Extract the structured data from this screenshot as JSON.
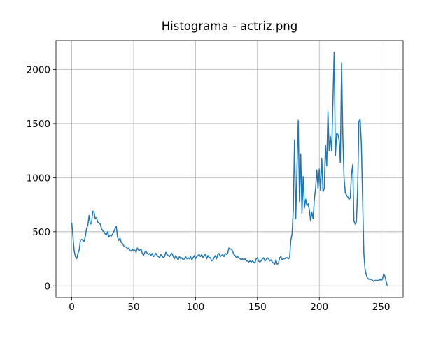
{
  "chart_data": {
    "type": "line",
    "title": "Histograma - actriz.png",
    "x": [
      0,
      1,
      2,
      3,
      4,
      5,
      6,
      7,
      8,
      9,
      10,
      11,
      12,
      13,
      14,
      15,
      16,
      17,
      18,
      19,
      20,
      21,
      22,
      23,
      24,
      25,
      26,
      27,
      28,
      29,
      30,
      31,
      32,
      33,
      34,
      35,
      36,
      37,
      38,
      39,
      40,
      41,
      42,
      43,
      44,
      45,
      46,
      47,
      48,
      49,
      50,
      51,
      52,
      53,
      54,
      55,
      56,
      57,
      58,
      59,
      60,
      61,
      62,
      63,
      64,
      65,
      66,
      67,
      68,
      69,
      70,
      71,
      72,
      73,
      74,
      75,
      76,
      77,
      78,
      79,
      80,
      81,
      82,
      83,
      84,
      85,
      86,
      87,
      88,
      89,
      90,
      91,
      92,
      93,
      94,
      95,
      96,
      97,
      98,
      99,
      100,
      101,
      102,
      103,
      104,
      105,
      106,
      107,
      108,
      109,
      110,
      111,
      112,
      113,
      114,
      115,
      116,
      117,
      118,
      119,
      120,
      121,
      122,
      123,
      124,
      125,
      126,
      127,
      128,
      129,
      130,
      131,
      132,
      133,
      134,
      135,
      136,
      137,
      138,
      139,
      140,
      141,
      142,
      143,
      144,
      145,
      146,
      147,
      148,
      149,
      150,
      151,
      152,
      153,
      154,
      155,
      156,
      157,
      158,
      159,
      160,
      161,
      162,
      163,
      164,
      165,
      166,
      167,
      168,
      169,
      170,
      171,
      172,
      173,
      174,
      175,
      176,
      177,
      178,
      179,
      180,
      181,
      182,
      183,
      184,
      185,
      186,
      187,
      188,
      189,
      190,
      191,
      192,
      193,
      194,
      195,
      196,
      197,
      198,
      199,
      200,
      201,
      202,
      203,
      204,
      205,
      206,
      207,
      208,
      209,
      210,
      211,
      212,
      213,
      214,
      215,
      216,
      217,
      218,
      219,
      220,
      221,
      222,
      223,
      224,
      225,
      226,
      227,
      228,
      229,
      230,
      231,
      232,
      233,
      234,
      235,
      236,
      237,
      238,
      239,
      240,
      241,
      242,
      243,
      244,
      245,
      246,
      247,
      248,
      249,
      250,
      251,
      252,
      253,
      254,
      255
    ],
    "values": [
      580,
      450,
      320,
      270,
      250,
      300,
      330,
      420,
      430,
      420,
      410,
      460,
      530,
      560,
      650,
      570,
      580,
      690,
      680,
      620,
      630,
      590,
      580,
      570,
      530,
      510,
      500,
      480,
      470,
      500,
      450,
      470,
      460,
      480,
      500,
      530,
      550,
      450,
      420,
      440,
      400,
      390,
      370,
      360,
      360,
      340,
      350,
      330,
      320,
      340,
      320,
      330,
      310,
      350,
      330,
      330,
      340,
      300,
      280,
      310,
      320,
      300,
      290,
      300,
      280,
      300,
      270,
      280,
      300,
      280,
      270,
      260,
      290,
      280,
      260,
      270,
      310,
      290,
      280,
      270,
      290,
      300,
      270,
      250,
      280,
      260,
      240,
      270,
      250,
      260,
      240,
      250,
      270,
      250,
      260,
      250,
      270,
      240,
      260,
      280,
      250,
      270,
      280,
      290,
      270,
      290,
      260,
      280,
      290,
      250,
      280,
      260,
      260,
      230,
      240,
      260,
      280,
      250,
      290,
      300,
      270,
      280,
      290,
      270,
      300,
      290,
      300,
      350,
      340,
      340,
      320,
      290,
      280,
      260,
      270,
      260,
      250,
      240,
      250,
      240,
      250,
      230,
      230,
      220,
      230,
      220,
      230,
      220,
      210,
      250,
      260,
      230,
      220,
      230,
      250,
      260,
      230,
      240,
      260,
      250,
      230,
      240,
      220,
      210,
      200,
      240,
      200,
      210,
      260,
      270,
      240,
      250,
      250,
      260,
      260,
      250,
      260,
      420,
      480,
      700,
      1350,
      620,
      1100,
      1530,
      780,
      1220,
      670,
      1010,
      720,
      800,
      740,
      760,
      700,
      600,
      680,
      620,
      800,
      900,
      1070,
      900,
      1080,
      880,
      1180,
      870,
      900,
      1300,
      1110,
      1610,
      1250,
      1380,
      1250,
      1700,
      2160,
      1200,
      1410,
      1400,
      1350,
      1140,
      2060,
      1400,
      1000,
      860,
      840,
      820,
      800,
      810,
      1030,
      1120,
      600,
      570,
      590,
      900,
      1520,
      1540,
      1310,
      800,
      300,
      150,
      100,
      70,
      60,
      60,
      60,
      50,
      40,
      50,
      50,
      50,
      50,
      60,
      50,
      60,
      110,
      90,
      40,
      0
    ],
    "color": "#1f77b4",
    "xlim": [
      -12.75,
      267.75
    ],
    "xticks": [
      0,
      50,
      100,
      150,
      200,
      250
    ],
    "ylim": [
      -108,
      2268
    ],
    "yticks": [
      0,
      500,
      1000,
      1500,
      2000
    ],
    "grid": true
  }
}
